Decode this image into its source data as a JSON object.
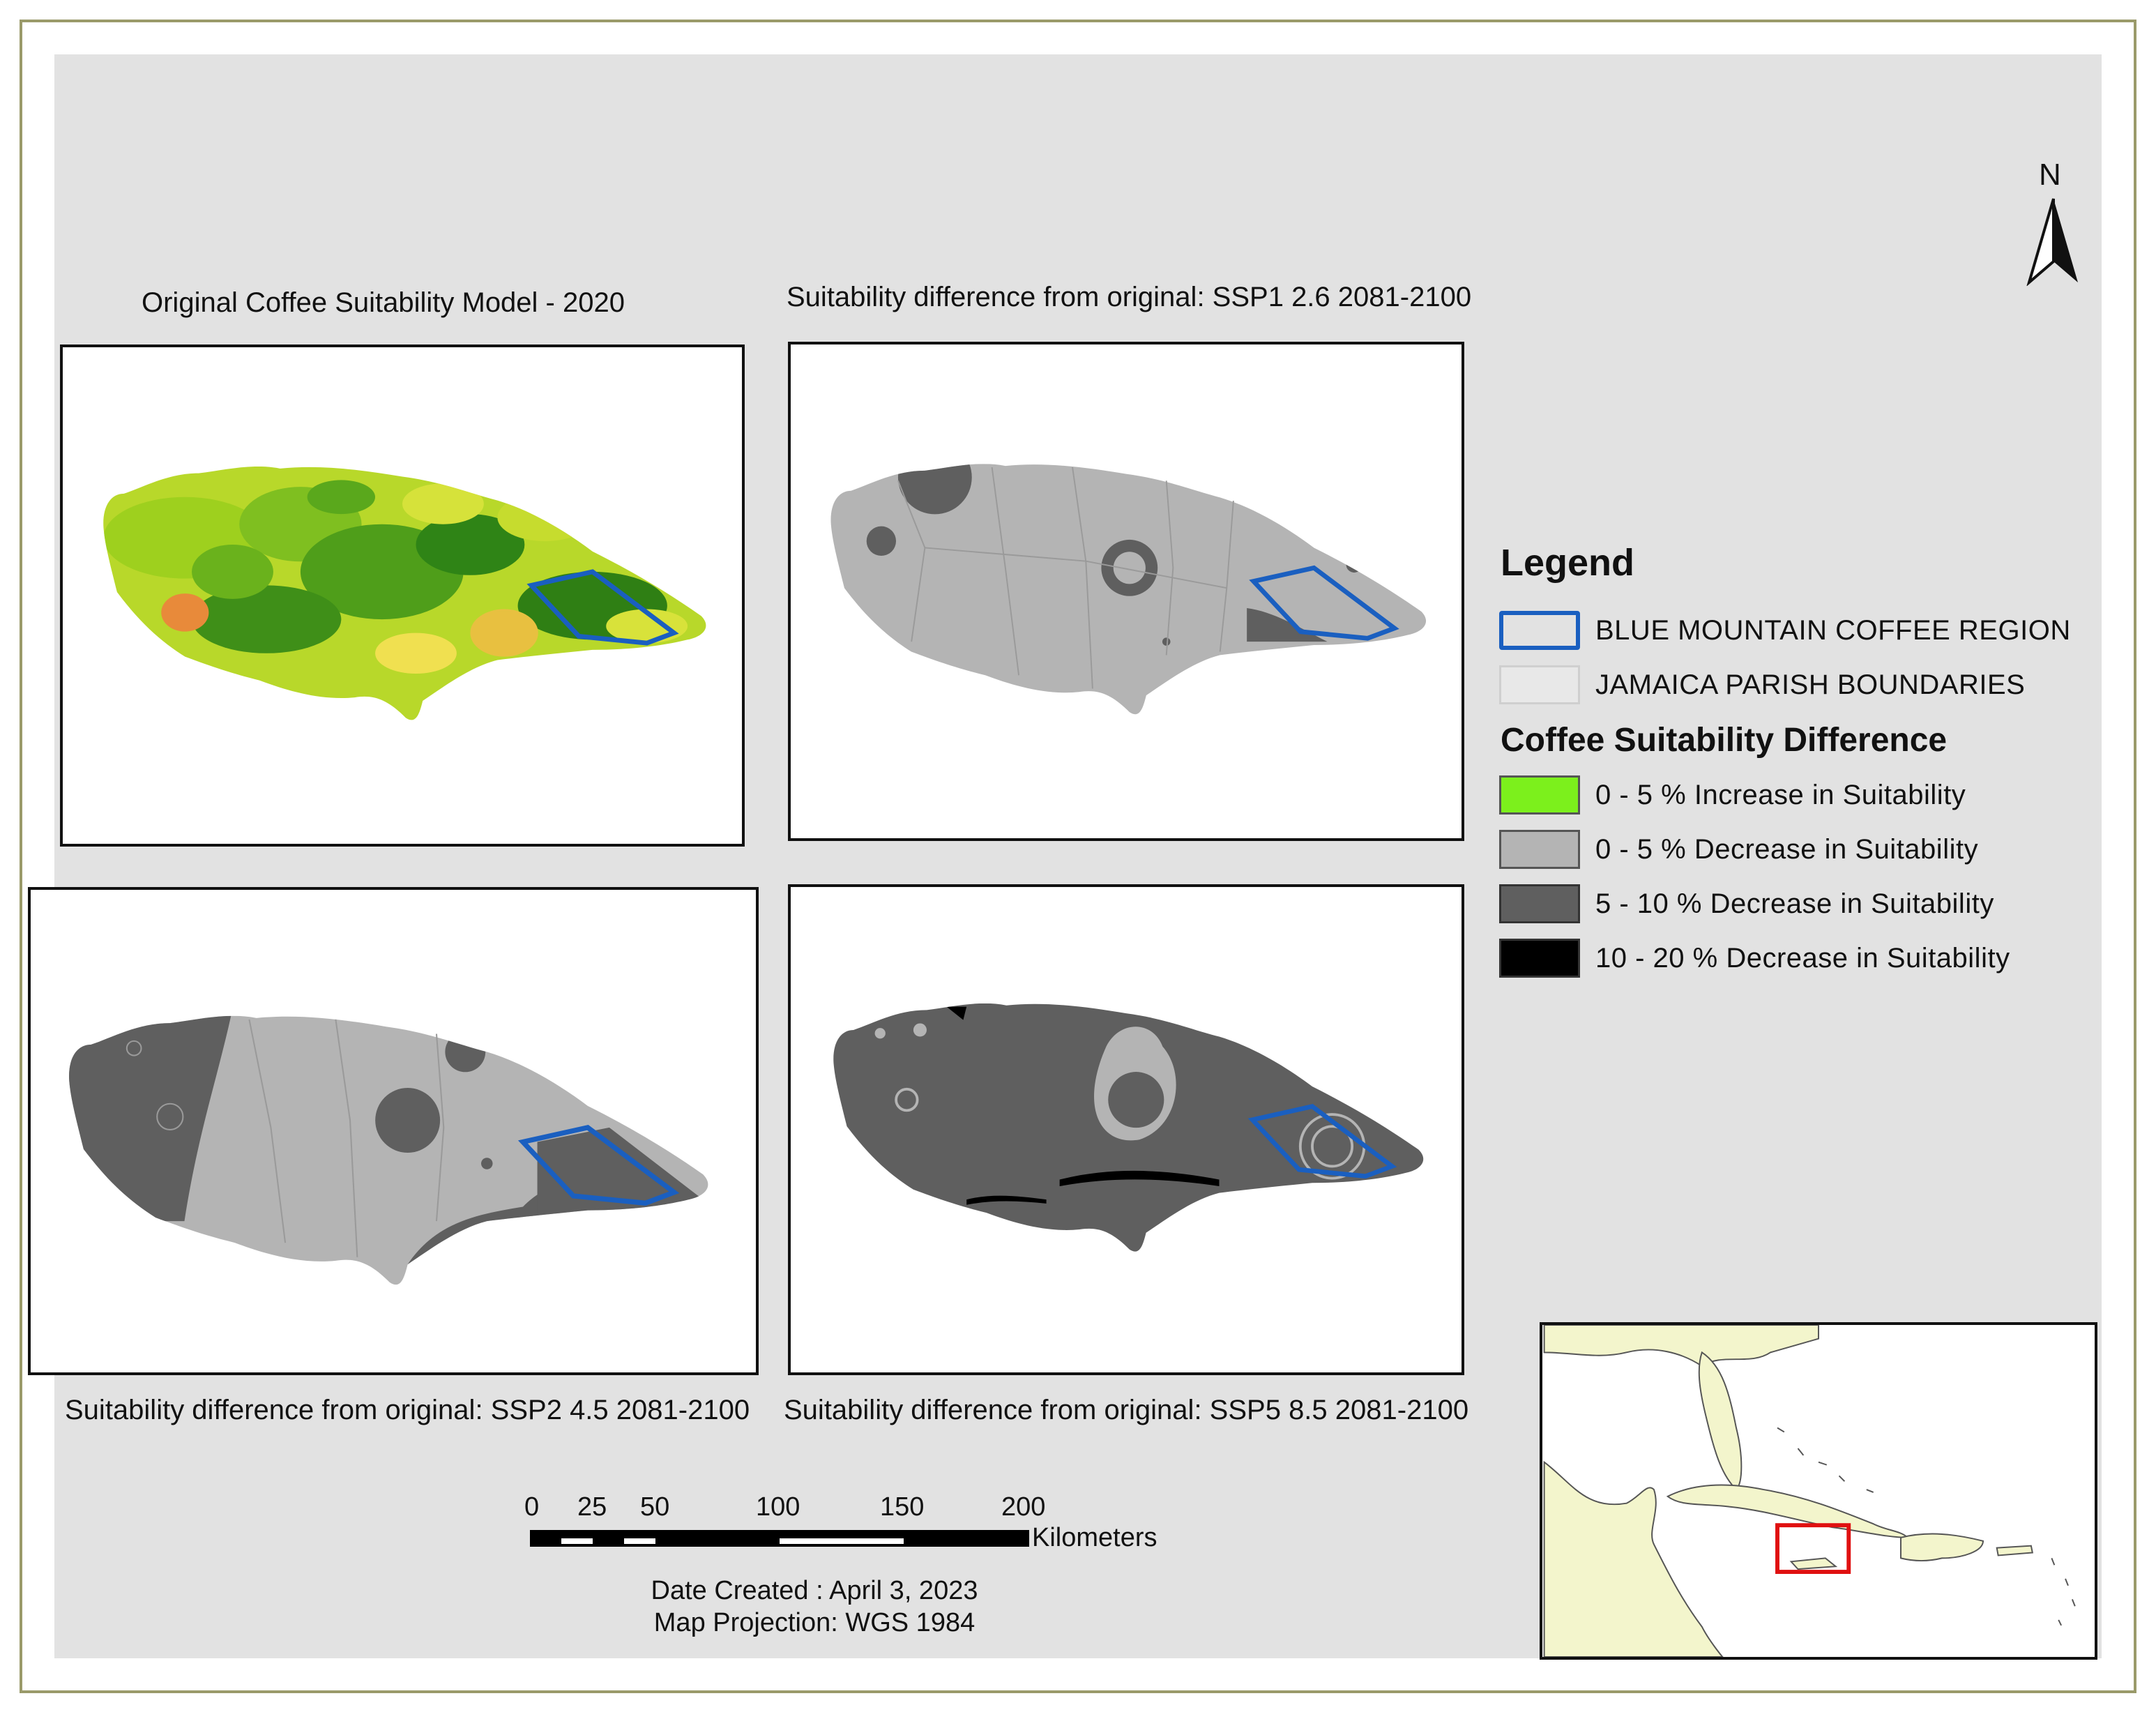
{
  "panels": [
    {
      "id": "original",
      "title": "Original Coffee Suitability Model - 2020"
    },
    {
      "id": "ssp1",
      "title": "Suitability difference from original: SSP1 2.6 2081-2100"
    },
    {
      "id": "ssp2",
      "title": "Suitability difference from original: SSP2 4.5 2081-2100"
    },
    {
      "id": "ssp5",
      "title": "Suitability difference from original: SSP5 8.5 2081-2100"
    }
  ],
  "north_arrow": {
    "label": "N"
  },
  "legend": {
    "title": "Legend",
    "region_label": "BLUE MOUNTAIN COFFEE REGION",
    "parish_label": "JAMAICA PARISH BOUNDARIES",
    "diff_title": "Coffee Suitability Difference",
    "classes": [
      {
        "label": "0 - 5 % Increase in Suitability",
        "color": "#7cf01c"
      },
      {
        "label": "0 - 5 % Decrease in Suitability",
        "color": "#b4b4b4"
      },
      {
        "label": "5 - 10 % Decrease in Suitability",
        "color": "#5f5f5f"
      },
      {
        "label": "10 - 20 % Decrease in Suitability",
        "color": "#000000"
      }
    ]
  },
  "scale_bar": {
    "ticks": [
      "0",
      "25",
      "50",
      "100",
      "150",
      "200"
    ],
    "units": "Kilometers"
  },
  "footer": {
    "date": "Date Created : April 3, 2023",
    "projection": "Map Projection: WGS 1984"
  },
  "colors": {
    "region_outline": "#1a5fc0",
    "inset_box": "#e01010",
    "land_inset": "#f3f5cc",
    "water_inset": "#ffffff"
  }
}
